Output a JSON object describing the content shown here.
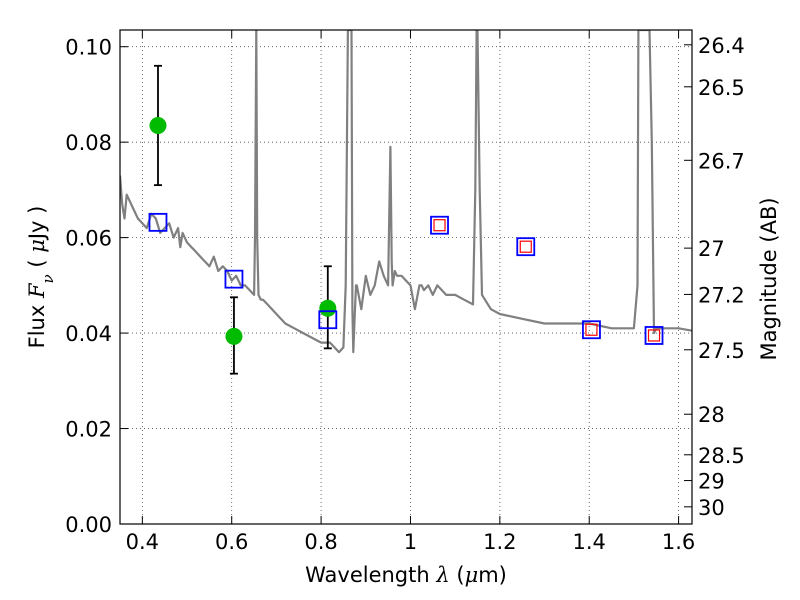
{
  "chart_data": {
    "type": "scatter",
    "xlabel": {
      "prefix": "Wavelength",
      "symbol": "λ",
      "unit_open": "(",
      "unit_mu": "μ",
      "unit_rest": "m)"
    },
    "ylabel": {
      "prefix": "Flux",
      "symbol": "F",
      "subscript": "ν",
      "unit_open": "(",
      "unit_mu": "μ",
      "unit_rest": "Jy )"
    },
    "y2label": "Magnitude (AB)",
    "xlim": [
      0.35,
      1.63
    ],
    "ylim": [
      0.0,
      0.1035
    ],
    "xticks": [
      0.4,
      0.6,
      0.8,
      1.0,
      1.2,
      1.4,
      1.6
    ],
    "xtick_labels": [
      "0.4",
      "0.6",
      "0.8",
      "1",
      "1.2",
      "1.4",
      "1.6"
    ],
    "yticks": [
      0.0,
      0.02,
      0.04,
      0.06,
      0.08,
      0.1
    ],
    "ytick_labels": [
      "0.00",
      "0.02",
      "0.04",
      "0.06",
      "0.08",
      "0.10"
    ],
    "mag_ticks": [
      {
        "label": "26.4",
        "flux": 0.1004
      },
      {
        "label": "26.5",
        "flux": 0.0916
      },
      {
        "label": "26.7",
        "flux": 0.0762
      },
      {
        "label": "27",
        "flux": 0.0578
      },
      {
        "label": "27.2",
        "flux": 0.0481
      },
      {
        "label": "27.5",
        "flux": 0.0365
      },
      {
        "label": "28",
        "flux": 0.023
      },
      {
        "label": "28.5",
        "flux": 0.0145
      },
      {
        "label": "29",
        "flux": 0.0091
      },
      {
        "label": "30",
        "flux": 0.0036
      }
    ],
    "grid": true,
    "template_spectrum": {
      "color": "#808080",
      "x": [
        0.35,
        0.355,
        0.36,
        0.365,
        0.37,
        0.38,
        0.39,
        0.4,
        0.41,
        0.42,
        0.43,
        0.44,
        0.45,
        0.46,
        0.47,
        0.48,
        0.485,
        0.49,
        0.5,
        0.51,
        0.52,
        0.53,
        0.54,
        0.55,
        0.56,
        0.57,
        0.58,
        0.59,
        0.6,
        0.61,
        0.62,
        0.63,
        0.64,
        0.65,
        0.652,
        0.655,
        0.657,
        0.66,
        0.665,
        0.67,
        0.68,
        0.7,
        0.72,
        0.74,
        0.76,
        0.78,
        0.8,
        0.82,
        0.83,
        0.84,
        0.85,
        0.855,
        0.86,
        0.865,
        0.868,
        0.87,
        0.872,
        0.875,
        0.878,
        0.88,
        0.89,
        0.9,
        0.91,
        0.92,
        0.93,
        0.94,
        0.95,
        0.955,
        0.958,
        0.96,
        0.965,
        0.97,
        0.98,
        0.99,
        1.0,
        1.01,
        1.02,
        1.025,
        1.03,
        1.04,
        1.05,
        1.06,
        1.07,
        1.08,
        1.1,
        1.12,
        1.14,
        1.145,
        1.148,
        1.15,
        1.155,
        1.16,
        1.18,
        1.2,
        1.25,
        1.3,
        1.35,
        1.4,
        1.45,
        1.5,
        1.508,
        1.51,
        1.515,
        1.52,
        1.53,
        1.535,
        1.54,
        1.545,
        1.55,
        1.6,
        1.63
      ],
      "y": [
        0.073,
        0.067,
        0.064,
        0.069,
        0.068,
        0.066,
        0.064,
        0.063,
        0.062,
        0.065,
        0.064,
        0.061,
        0.062,
        0.063,
        0.06,
        0.062,
        0.058,
        0.061,
        0.059,
        0.058,
        0.057,
        0.056,
        0.055,
        0.054,
        0.056,
        0.053,
        0.054,
        0.053,
        0.051,
        0.052,
        0.05,
        0.05,
        0.049,
        0.048,
        0.06,
        0.105,
        0.06,
        0.048,
        0.047,
        0.047,
        0.046,
        0.044,
        0.042,
        0.041,
        0.04,
        0.039,
        0.038,
        0.038,
        0.037,
        0.036,
        0.037,
        0.05,
        0.105,
        0.105,
        0.105,
        0.045,
        0.036,
        0.043,
        0.05,
        0.05,
        0.045,
        0.052,
        0.048,
        0.05,
        0.055,
        0.052,
        0.05,
        0.079,
        0.055,
        0.05,
        0.053,
        0.052,
        0.052,
        0.051,
        0.05,
        0.045,
        0.05,
        0.05,
        0.049,
        0.05,
        0.048,
        0.05,
        0.049,
        0.048,
        0.048,
        0.047,
        0.046,
        0.07,
        0.105,
        0.105,
        0.07,
        0.048,
        0.045,
        0.044,
        0.043,
        0.042,
        0.042,
        0.042,
        0.041,
        0.041,
        0.05,
        0.105,
        0.105,
        0.105,
        0.105,
        0.105,
        0.08,
        0.04,
        0.041,
        0.041,
        0.0405
      ],
      "clip_top": 0.1035
    },
    "series": [
      {
        "name": "",
        "marker": "circle",
        "color": "#00bb00",
        "x": [
          0.435,
          0.605,
          0.815
        ],
        "y": [
          0.0835,
          0.0393,
          0.0452
        ],
        "err_low": [
          0.071,
          0.0315,
          0.0368
        ],
        "err_high": [
          0.096,
          0.0475,
          0.054
        ]
      },
      {
        "name": "",
        "marker": "square",
        "color": "#0000ff",
        "x": [
          0.435,
          0.605,
          0.815,
          1.065,
          1.258,
          1.405,
          1.545
        ],
        "y": [
          0.0632,
          0.0513,
          0.0428,
          0.0626,
          0.0581,
          0.0407,
          0.0395
        ]
      },
      {
        "name": "",
        "marker": "square-small",
        "color": "#ff0000",
        "x": [
          1.065,
          1.258,
          1.405,
          1.545
        ],
        "y": [
          0.0626,
          0.0581,
          0.0407,
          0.0395
        ]
      }
    ]
  }
}
